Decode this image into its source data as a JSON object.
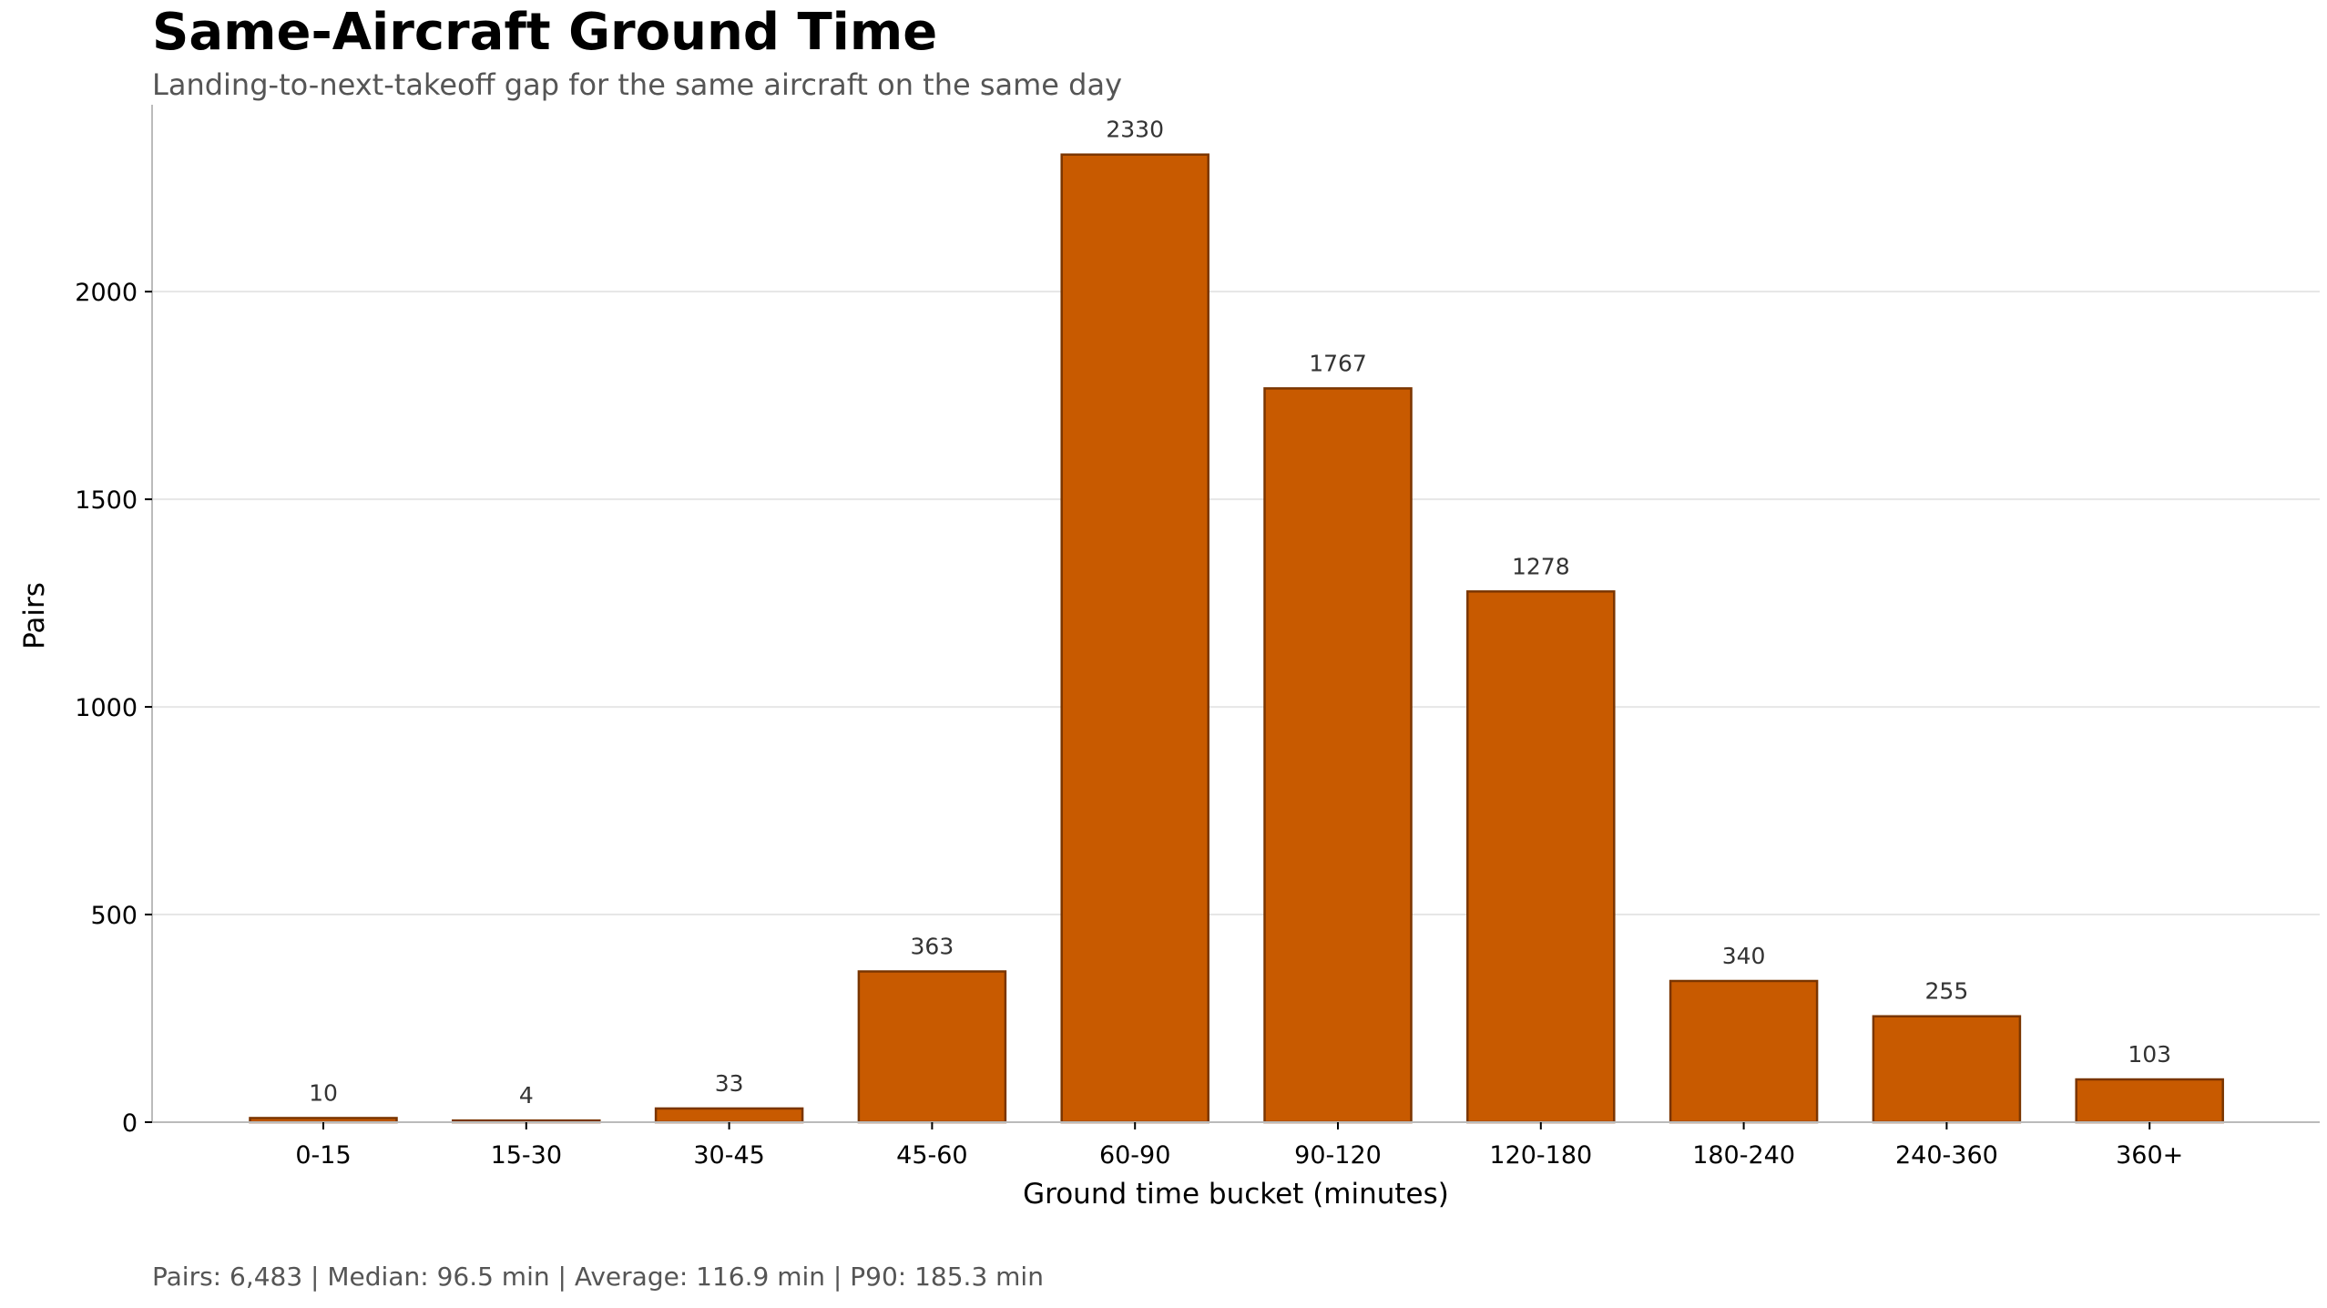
{
  "chart_data": {
    "type": "bar",
    "title": "Same-Aircraft Ground Time",
    "subtitle": "Landing-to-next-takeoff gap for the same aircraft on the same day",
    "xlabel": "Ground time bucket (minutes)",
    "ylabel": "Pairs",
    "categories": [
      "0-15",
      "15-30",
      "30-45",
      "45-60",
      "60-90",
      "90-120",
      "120-180",
      "180-240",
      "240-360",
      "360+"
    ],
    "values": [
      10,
      4,
      33,
      363,
      2330,
      1767,
      1278,
      340,
      255,
      103
    ],
    "yticks": [
      0,
      500,
      1000,
      1500,
      2000
    ],
    "ylim": [
      0,
      2450
    ],
    "grid": "horizontal",
    "bar_color": "#c85a00",
    "bar_edge_color": "#7a3500",
    "footer": "Pairs: 6,483 | Median: 96.5 min | Average: 116.9 min | P90: 185.3 min"
  }
}
